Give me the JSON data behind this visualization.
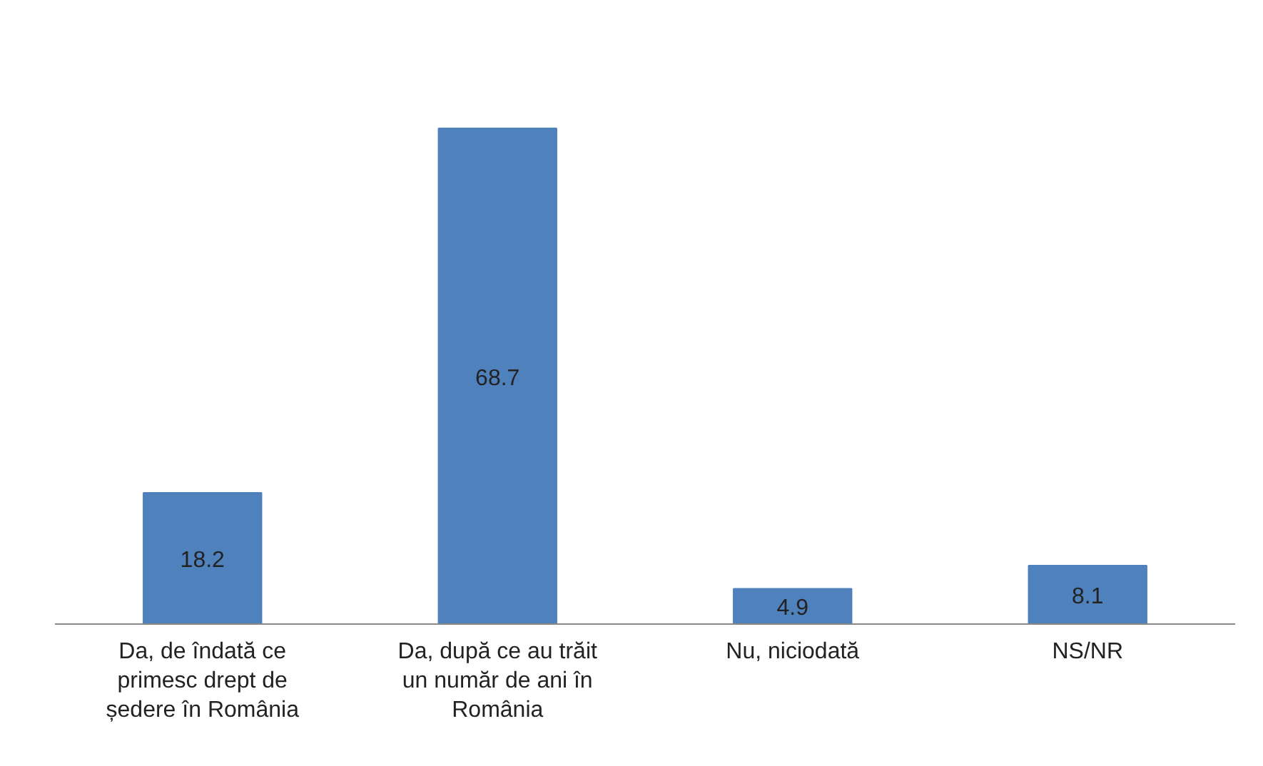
{
  "chart_data": {
    "type": "bar",
    "categories": [
      "Da, de îndată ce\nprimesc drept de\nședere în România",
      "Da, după ce au trăit\nun număr de ani în\nRomânia",
      "Nu, niciodată",
      "NS/NR"
    ],
    "values": [
      18.2,
      68.7,
      4.9,
      8.1
    ],
    "color": "#4f81bd",
    "data_labels": true,
    "grid": false
  }
}
